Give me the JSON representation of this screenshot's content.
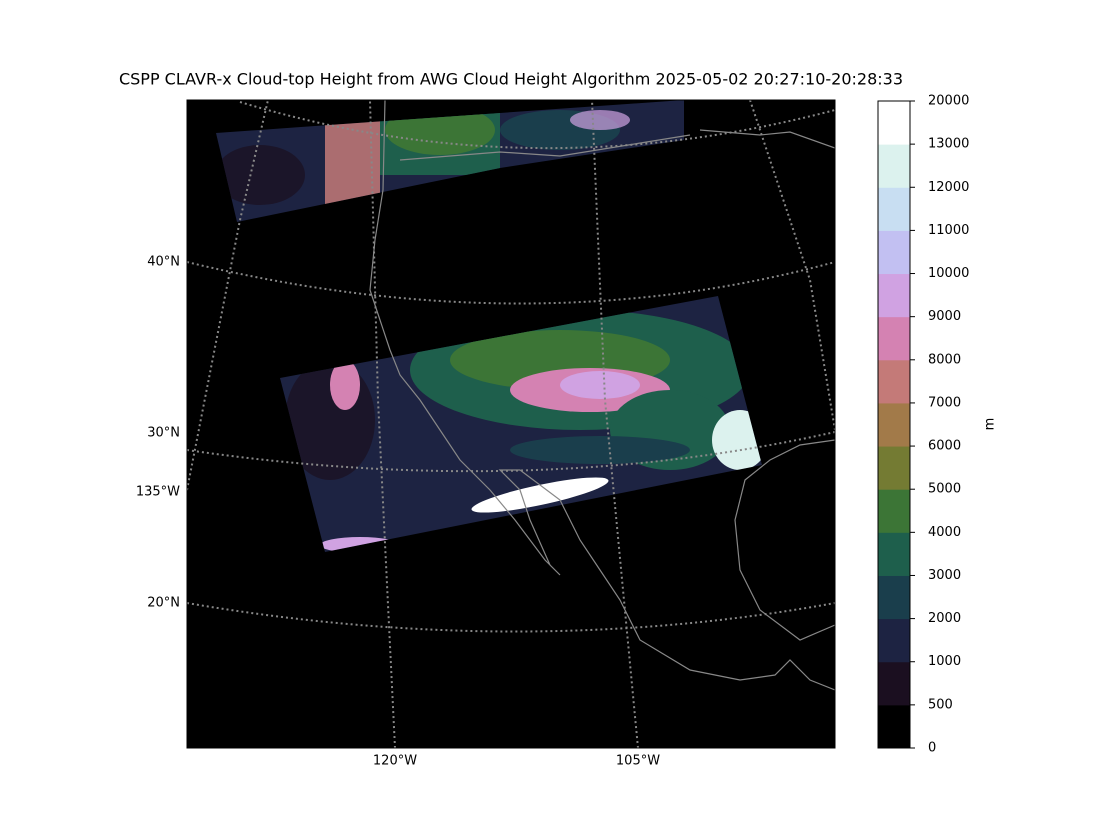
{
  "title": "CSPP CLAVR-x Cloud-top Height from AWG Cloud Height Algorithm 2025-05-02 20:27:10-20:28:33",
  "map": {
    "lat_labels": [
      "40°N",
      "30°N",
      "20°N"
    ],
    "lon_labels": [
      "135°W",
      "120°W",
      "105°W"
    ]
  },
  "colorbar": {
    "label": "m",
    "boundaries": [
      0,
      500,
      1000,
      2000,
      3000,
      4000,
      5000,
      6000,
      7000,
      8000,
      9000,
      10000,
      11000,
      12000,
      13000,
      20000
    ],
    "colors": [
      "#000000",
      "#1b0f20",
      "#1d2342",
      "#1a3e4c",
      "#1e5f4c",
      "#3c7536",
      "#747b33",
      "#a27a49",
      "#c47a78",
      "#d482b2",
      "#d0a2e2",
      "#c2c0f2",
      "#c8def2",
      "#dcf2ee",
      "#ffffff"
    ]
  }
}
